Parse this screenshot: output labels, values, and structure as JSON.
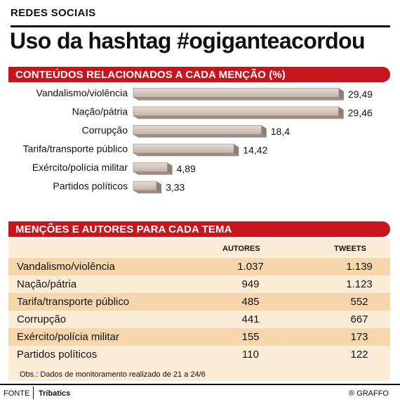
{
  "header": {
    "kicker": "REDES SOCIAIS",
    "title": "Uso da hashtag #ogiganteacordou"
  },
  "section1": {
    "title": "CONTEÚDOS RELACIONADOS A CADA MENÇÃO (%)"
  },
  "section2": {
    "title": "MENÇÕES E AUTORES PARA CADA TEMA"
  },
  "chart_data": {
    "type": "bar",
    "orientation": "horizontal",
    "title": "CONTEÚDOS RELACIONADOS A CADA MENÇÃO (%)",
    "categories": [
      "Vandalismo/violência",
      "Nação/pátria",
      "Corrupção",
      "Tarifa/transporte público",
      "Exército/polícia militar",
      "Partidos políticos"
    ],
    "values": [
      29.49,
      29.46,
      18.4,
      14.42,
      4.89,
      3.33
    ],
    "value_labels": [
      "29,49",
      "29,46",
      "18,4",
      "14,42",
      "4,89",
      "3,33"
    ],
    "bar_color": "#c8b9b0",
    "xlim": [
      0,
      30
    ],
    "grid": false
  },
  "table": {
    "headers": {
      "authors": "AUTORES",
      "tweets": "TWEETS"
    },
    "rows": [
      {
        "label": "Vandalismo/violência",
        "authors": "1.037",
        "tweets": "1.139"
      },
      {
        "label": "Nação/pátria",
        "authors": "949",
        "tweets": "1.123"
      },
      {
        "label": "Tarifa/transporte público",
        "authors": "485",
        "tweets": "552"
      },
      {
        "label": "Corrupção",
        "authors": "441",
        "tweets": "667"
      },
      {
        "label": "Exército/polícia militar",
        "authors": "155",
        "tweets": "173"
      },
      {
        "label": "Partidos políticos",
        "authors": "110",
        "tweets": "122"
      }
    ],
    "note": "Obs.: Dados de monitoramento realizado de 21 a 24/6"
  },
  "footer": {
    "source_label": "FONTE",
    "source_name": "Tribatics",
    "credit": "® GRAFFO"
  },
  "colors": {
    "accent": "#c7151d",
    "table_bg": "#fcecd6",
    "row_shade": "#f6d7ab"
  }
}
